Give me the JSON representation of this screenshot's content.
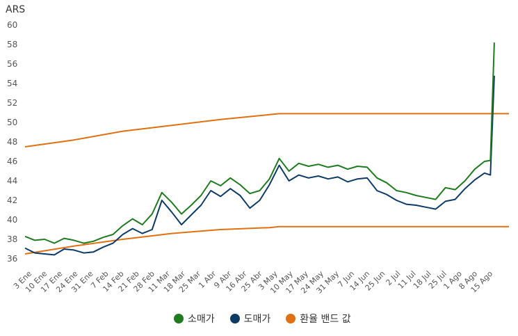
{
  "chart_data": {
    "type": "line",
    "unit_label": "ARS",
    "ylim": [
      36,
      60
    ],
    "y_ticks": [
      36,
      38,
      40,
      42,
      44,
      46,
      48,
      50,
      52,
      54,
      56,
      58,
      60
    ],
    "x_tick_labels": [
      "3 Ene",
      "10 Ene",
      "17 Ene",
      "24 Ene",
      "31 Ene",
      "7 Feb",
      "14 Feb",
      "21 Feb",
      "28 Feb",
      "11 Mar",
      "18 Mar",
      "25 Mar",
      "1 Abr",
      "9 Abr",
      "16 Abr",
      "25 Abr",
      "3 May",
      "10 May",
      "17 May",
      "24 May",
      "31 May",
      "7 Jun",
      "14 Jun",
      "25 Jun",
      "2 Jul",
      "11 Jul",
      "18 Jul",
      "25 Jul",
      "1 Ago",
      "8 Ago",
      "15 Ago"
    ],
    "grid": false,
    "legend_position": "bottom",
    "colors": {
      "retail": "#1e7b1e",
      "wholesale": "#0d3b66",
      "band": "#e07012",
      "axis_text": "#555555"
    },
    "series": [
      {
        "name": "소매가",
        "color": "#1e7b1e",
        "points": [
          [
            0,
            38.3
          ],
          [
            1,
            37.9
          ],
          [
            2,
            38.0
          ],
          [
            3,
            37.6
          ],
          [
            4,
            38.1
          ],
          [
            5,
            37.9
          ],
          [
            6,
            37.6
          ],
          [
            7,
            37.8
          ],
          [
            8,
            38.2
          ],
          [
            9,
            38.5
          ],
          [
            10,
            39.4
          ],
          [
            11,
            40.1
          ],
          [
            12,
            39.5
          ],
          [
            13,
            40.6
          ],
          [
            14,
            42.8
          ],
          [
            15,
            41.8
          ],
          [
            16,
            40.6
          ],
          [
            17,
            41.5
          ],
          [
            18,
            42.5
          ],
          [
            19,
            44.0
          ],
          [
            20,
            43.5
          ],
          [
            21,
            44.3
          ],
          [
            22,
            43.6
          ],
          [
            23,
            42.7
          ],
          [
            24,
            43.0
          ],
          [
            25,
            44.2
          ],
          [
            26,
            46.3
          ],
          [
            27,
            45.0
          ],
          [
            28,
            45.8
          ],
          [
            29,
            45.5
          ],
          [
            30,
            45.7
          ],
          [
            31,
            45.4
          ],
          [
            32,
            45.6
          ],
          [
            33,
            45.2
          ],
          [
            34,
            45.5
          ],
          [
            35,
            45.4
          ],
          [
            36,
            44.3
          ],
          [
            37,
            43.8
          ],
          [
            38,
            43.0
          ],
          [
            39,
            42.8
          ],
          [
            40,
            42.5
          ],
          [
            41,
            42.3
          ],
          [
            42,
            42.1
          ],
          [
            43,
            43.3
          ],
          [
            44,
            43.1
          ],
          [
            45,
            44.0
          ],
          [
            46,
            45.2
          ],
          [
            47,
            46.0
          ],
          [
            47.6,
            46.1
          ],
          [
            48,
            58.2
          ]
        ]
      },
      {
        "name": "도매가",
        "color": "#0d3b66",
        "points": [
          [
            0,
            37.1
          ],
          [
            1,
            36.6
          ],
          [
            2,
            36.5
          ],
          [
            3,
            36.4
          ],
          [
            4,
            37.0
          ],
          [
            5,
            36.9
          ],
          [
            6,
            36.6
          ],
          [
            7,
            36.7
          ],
          [
            8,
            37.2
          ],
          [
            9,
            37.6
          ],
          [
            10,
            38.5
          ],
          [
            11,
            39.1
          ],
          [
            12,
            38.6
          ],
          [
            13,
            39.0
          ],
          [
            14,
            42.0
          ],
          [
            15,
            40.8
          ],
          [
            16,
            39.5
          ],
          [
            17,
            40.5
          ],
          [
            18,
            41.5
          ],
          [
            19,
            43.0
          ],
          [
            20,
            42.4
          ],
          [
            21,
            43.2
          ],
          [
            22,
            42.5
          ],
          [
            23,
            41.2
          ],
          [
            24,
            42.0
          ],
          [
            25,
            43.6
          ],
          [
            26,
            45.6
          ],
          [
            27,
            44.0
          ],
          [
            28,
            44.6
          ],
          [
            29,
            44.3
          ],
          [
            30,
            44.5
          ],
          [
            31,
            44.2
          ],
          [
            32,
            44.4
          ],
          [
            33,
            43.9
          ],
          [
            34,
            44.2
          ],
          [
            35,
            44.3
          ],
          [
            36,
            43.0
          ],
          [
            37,
            42.6
          ],
          [
            38,
            42.0
          ],
          [
            39,
            41.6
          ],
          [
            40,
            41.5
          ],
          [
            41,
            41.3
          ],
          [
            42,
            41.1
          ],
          [
            43,
            41.9
          ],
          [
            44,
            42.1
          ],
          [
            45,
            43.2
          ],
          [
            46,
            44.1
          ],
          [
            47,
            44.8
          ],
          [
            47.6,
            44.6
          ],
          [
            48,
            54.8
          ]
        ]
      },
      {
        "name": "환율 밴드 값",
        "color": "#e07012",
        "points": [
          [
            0,
            47.5
          ],
          [
            5,
            48.2
          ],
          [
            10,
            49.1
          ],
          [
            15,
            49.7
          ],
          [
            20,
            50.3
          ],
          [
            25,
            50.8
          ],
          [
            26,
            50.9
          ],
          [
            49.5,
            50.9
          ]
        ]
      },
      {
        "name": "환율 밴드 값",
        "color": "#e07012",
        "points": [
          [
            0,
            36.5
          ],
          [
            5,
            37.3
          ],
          [
            10,
            38.0
          ],
          [
            15,
            38.6
          ],
          [
            20,
            39.0
          ],
          [
            25,
            39.2
          ],
          [
            26,
            39.3
          ],
          [
            49.5,
            39.3
          ]
        ]
      }
    ]
  },
  "legend": [
    {
      "label": "소매가",
      "color": "#1e7b1e"
    },
    {
      "label": "도매가",
      "color": "#0d3b66"
    },
    {
      "label": "환율 밴드 값",
      "color": "#e07012"
    }
  ]
}
